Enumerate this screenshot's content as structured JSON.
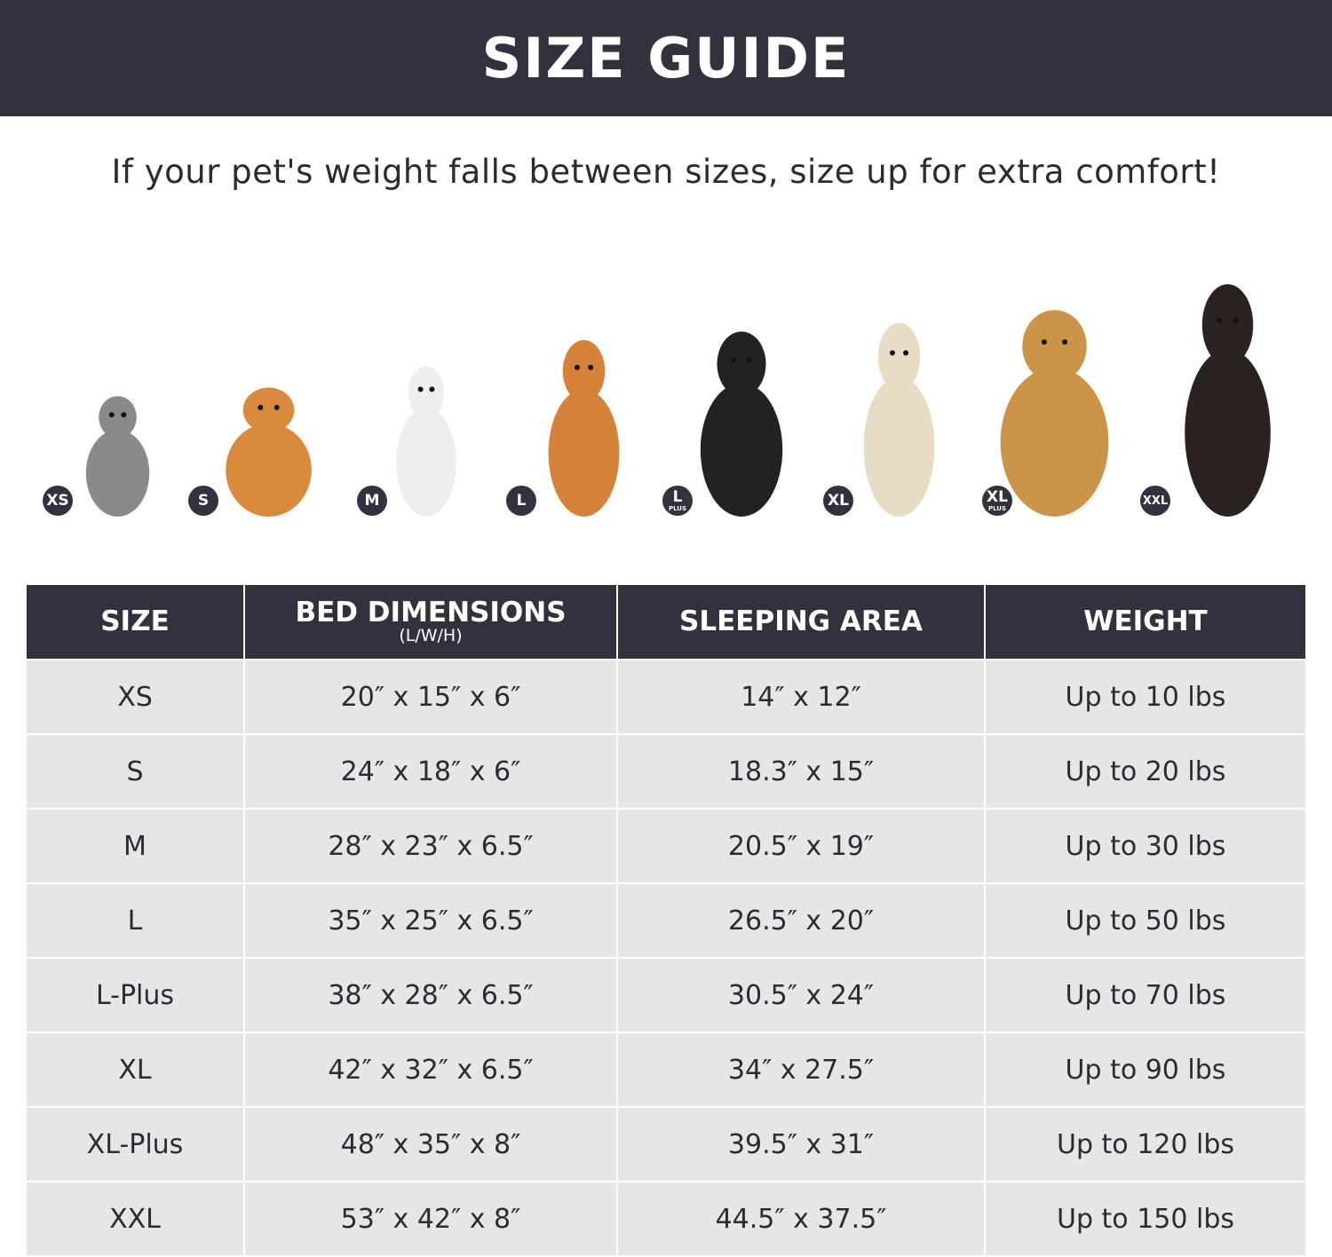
{
  "header": {
    "title": "SIZE GUIDE"
  },
  "subtitle": "If your pet's weight falls between sizes, size up for extra comfort!",
  "colors": {
    "banner": "#32323e",
    "row_bg": "#e6e6e6",
    "text": "#2b2b33"
  },
  "pets": [
    {
      "badge": "XS",
      "badge_sub": "",
      "animal": "cat"
    },
    {
      "badge": "S",
      "badge_sub": "",
      "animal": "pomeranian"
    },
    {
      "badge": "M",
      "badge_sub": "",
      "animal": "french-bulldog"
    },
    {
      "badge": "L",
      "badge_sub": "",
      "animal": "shiba-inu"
    },
    {
      "badge": "L",
      "badge_sub": "PLUS",
      "animal": "border-collie"
    },
    {
      "badge": "XL",
      "badge_sub": "",
      "animal": "labrador"
    },
    {
      "badge": "XL",
      "badge_sub": "PLUS",
      "animal": "golden-retriever"
    },
    {
      "badge": "XXL",
      "badge_sub": "",
      "animal": "doberman"
    }
  ],
  "table": {
    "headers": [
      {
        "label": "SIZE",
        "sub": ""
      },
      {
        "label": "BED DIMENSIONS",
        "sub": "(L/W/H)"
      },
      {
        "label": "SLEEPING AREA",
        "sub": ""
      },
      {
        "label": "WEIGHT",
        "sub": ""
      }
    ],
    "rows": [
      [
        "XS",
        "20″ x 15″ x 6″",
        "14″ x 12″",
        "Up to 10 lbs"
      ],
      [
        "S",
        "24″ x 18″ x 6″",
        "18.3″ x 15″",
        "Up to 20 lbs"
      ],
      [
        "M",
        "28″ x 23″ x 6.5″",
        "20.5″ x 19″",
        "Up to 30 lbs"
      ],
      [
        "L",
        "35″ x 25″ x 6.5″",
        "26.5″ x 20″",
        "Up to 50 lbs"
      ],
      [
        "L-Plus",
        "38″ x 28″ x 6.5″",
        "30.5″ x 24″",
        "Up to 70 lbs"
      ],
      [
        "XL",
        "42″ x 32″ x 6.5″",
        "34″ x 27.5″",
        "Up to 90 lbs"
      ],
      [
        "XL-Plus",
        "48″ x 35″ x 8″",
        "39.5″ x 31″",
        "Up to 120 lbs"
      ],
      [
        "XXL",
        "53″ x 42″ x 8″",
        "44.5″ x 37.5″",
        "Up to 150 lbs"
      ]
    ]
  }
}
